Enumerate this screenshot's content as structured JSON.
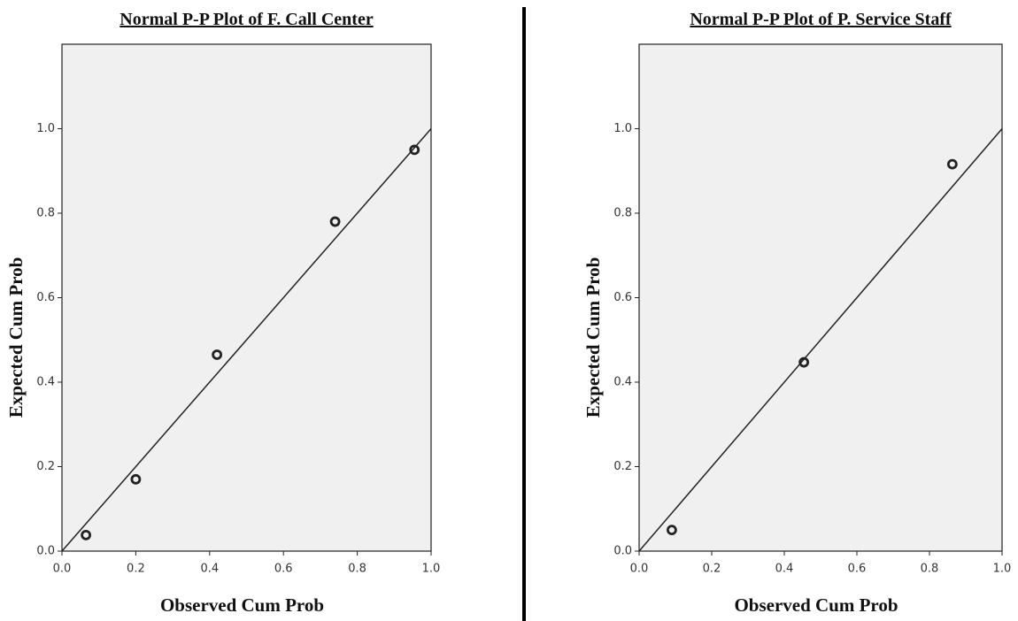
{
  "chart_data": [
    {
      "type": "scatter",
      "title": "Normal P-P Plot of F. Call Center",
      "x_label": "Observed Cum Prob",
      "y_label": "Expected Cum Prob",
      "x": [
        0.065,
        0.2,
        0.42,
        0.74,
        0.955
      ],
      "values": [
        0.038,
        0.17,
        0.465,
        0.78,
        0.95
      ],
      "color": "#222222",
      "reference_line": true,
      "xlim": [
        0,
        1
      ],
      "ylim": [
        0,
        1.2
      ],
      "xticks": [
        {
          "value": 0,
          "label": "0.0"
        },
        0.2,
        0.4,
        0.6,
        0.8,
        {
          "value": 1,
          "label": "1.0"
        }
      ],
      "yticks": [
        {
          "value": 0,
          "label": "0.0"
        },
        0.2,
        0.4,
        0.6,
        0.8,
        {
          "value": 1,
          "label": "1.0"
        }
      ],
      "grid": false
    },
    {
      "type": "scatter",
      "title": "Normal P-P Plot of P. Service Staff",
      "x_label": "Observed Cum Prob",
      "y_label": "Expected Cum Prob",
      "x": [
        0.09,
        0.454,
        0.863
      ],
      "values": [
        0.05,
        0.447,
        0.916
      ],
      "color": "#222222",
      "reference_line": true,
      "xlim": [
        0,
        1
      ],
      "ylim": [
        0,
        1.2
      ],
      "xticks": [
        {
          "value": 0,
          "label": "0.0"
        },
        0.2,
        0.4,
        0.6,
        0.8,
        {
          "value": 1,
          "label": "1.0"
        }
      ],
      "yticks": [
        {
          "value": 0,
          "label": "0.0"
        },
        0.2,
        0.4,
        0.6,
        0.8,
        {
          "value": 1,
          "label": "1.0"
        }
      ],
      "grid": false
    }
  ]
}
